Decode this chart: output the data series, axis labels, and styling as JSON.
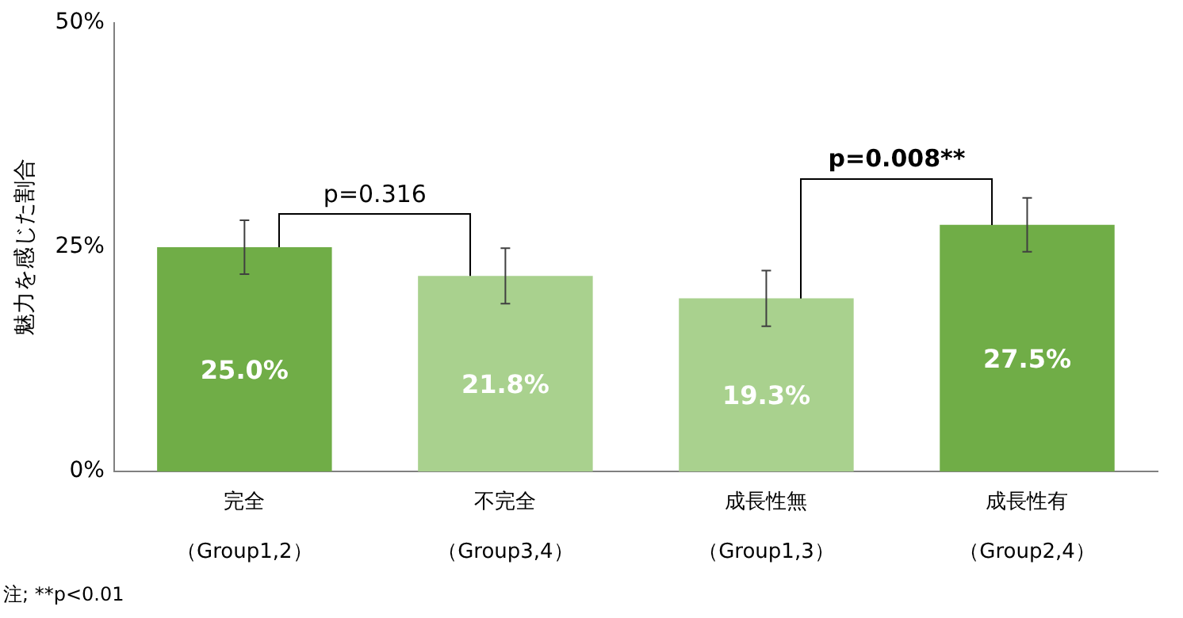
{
  "chart_data": {
    "type": "bar",
    "ylabel": "魅力を感じた割合",
    "categories": [
      "完全（Group1,2）",
      "不完全（Group3,4）",
      "成長性無（Group1,3）",
      "成長性有（Group2,4）"
    ],
    "values": [
      25.0,
      21.8,
      19.3,
      27.5
    ],
    "colors": [
      "#70ad47",
      "#a9d18e",
      "#a9d18e",
      "#70ad47"
    ],
    "errors": [
      3.0,
      3.1,
      3.1,
      3.0
    ],
    "value_labels": [
      "25.0%",
      "21.8%",
      "19.3%",
      "27.5%"
    ],
    "ylim": [
      0,
      50
    ],
    "yticks": [
      {
        "value": 0,
        "label": "0%"
      },
      {
        "value": 25,
        "label": "25%"
      },
      {
        "value": 50,
        "label": "50%"
      }
    ],
    "annotations": [
      "p=0.316",
      "p=0.008**",
      "注; **p<0.01"
    ],
    "grid": false,
    "legend": false
  }
}
